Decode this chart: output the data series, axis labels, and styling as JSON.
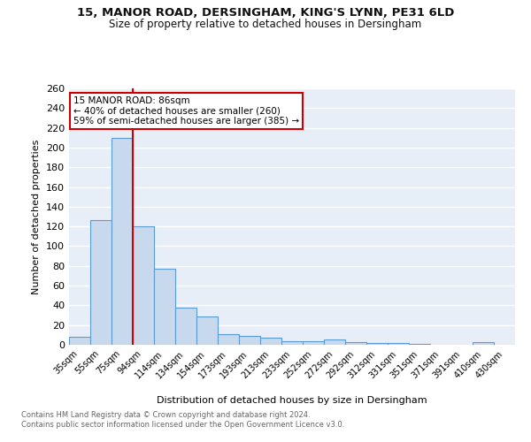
{
  "title1": "15, MANOR ROAD, DERSINGHAM, KING'S LYNN, PE31 6LD",
  "title2": "Size of property relative to detached houses in Dersingham",
  "xlabel": "Distribution of detached houses by size in Dersingham",
  "ylabel": "Number of detached properties",
  "footer1": "Contains HM Land Registry data © Crown copyright and database right 2024.",
  "footer2": "Contains public sector information licensed under the Open Government Licence v3.0.",
  "annotation_line1": "15 MANOR ROAD: 86sqm",
  "annotation_line2": "← 40% of detached houses are smaller (260)",
  "annotation_line3": "59% of semi-detached houses are larger (385) →",
  "bar_categories": [
    "35sqm",
    "55sqm",
    "75sqm",
    "94sqm",
    "114sqm",
    "134sqm",
    "154sqm",
    "173sqm",
    "193sqm",
    "213sqm",
    "233sqm",
    "252sqm",
    "272sqm",
    "292sqm",
    "312sqm",
    "331sqm",
    "351sqm",
    "371sqm",
    "391sqm",
    "410sqm",
    "430sqm"
  ],
  "bar_values": [
    8,
    126,
    210,
    120,
    77,
    38,
    29,
    11,
    9,
    7,
    4,
    4,
    5,
    3,
    2,
    2,
    1,
    0,
    0,
    3,
    0
  ],
  "bar_color": "#c8d9ed",
  "bar_edge_color": "#5b9bd5",
  "property_line_x": 2.5,
  "ylim": [
    0,
    260
  ],
  "yticks": [
    0,
    20,
    40,
    60,
    80,
    100,
    120,
    140,
    160,
    180,
    200,
    220,
    240,
    260
  ],
  "bg_color": "#e8eef7",
  "grid_color": "#ffffff",
  "annotation_box_edge_color": "#cc0000",
  "red_line_color": "#cc0000",
  "footer_color": "#666666"
}
